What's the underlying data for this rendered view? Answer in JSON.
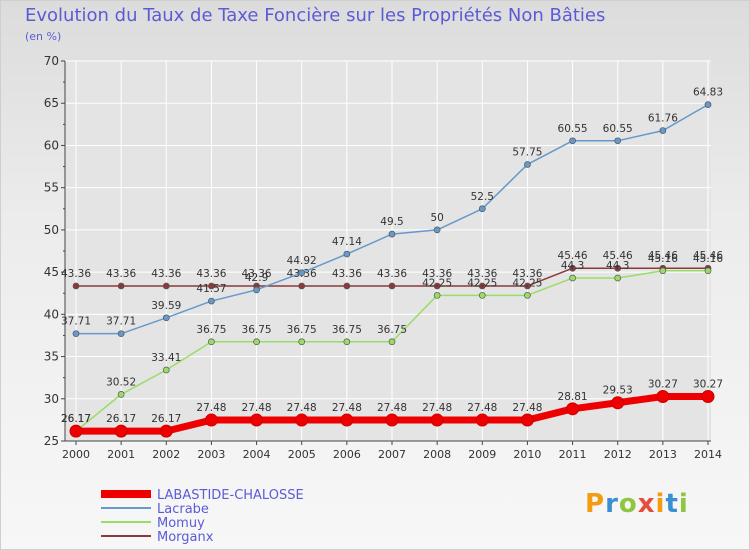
{
  "header": {
    "title": "Evolution du Taux de Taxe Foncière sur les Propriétés Non Bâties",
    "subtitle": "(en %)"
  },
  "logo": {
    "text": "Proxiti",
    "colors": [
      "#f39c12",
      "#3a8fd4",
      "#8dc63f",
      "#e74c3c",
      "#f39c12",
      "#3a8fd4",
      "#8dc63f"
    ]
  },
  "colors": {
    "title": "#5b5bd6",
    "axis": "#444444",
    "grid": "#ffffff"
  },
  "chart_data": {
    "type": "line",
    "x": [
      "2000",
      "2001",
      "2002",
      "2003",
      "2004",
      "2005",
      "2006",
      "2007",
      "2008",
      "2009",
      "2010",
      "2011",
      "2012",
      "2013",
      "2014"
    ],
    "ylim": [
      25,
      70
    ],
    "yticks": [
      25,
      30,
      35,
      40,
      45,
      50,
      55,
      60,
      65,
      70
    ],
    "grid": true,
    "legend_position": "bottom-left",
    "series": [
      {
        "name": "LABASTIDE-CHALOSSE",
        "color": "#ee0000",
        "values": [
          26.17,
          26.17,
          26.17,
          27.48,
          27.48,
          27.48,
          27.48,
          27.48,
          27.48,
          27.48,
          27.48,
          28.81,
          29.53,
          30.27,
          30.27
        ],
        "labels": [
          "26.17",
          "26.17",
          "26.17",
          "27.48",
          "27.48",
          "27.48",
          "27.48",
          "27.48",
          "27.48",
          "27.48",
          "27.48",
          "28.81",
          "29.53",
          "30.27",
          "30.27"
        ]
      },
      {
        "name": "Lacrabe",
        "color": "#6699cc",
        "values": [
          37.71,
          37.71,
          39.59,
          41.57,
          42.9,
          44.92,
          47.14,
          49.5,
          50,
          52.5,
          57.75,
          60.55,
          60.55,
          61.76,
          64.83
        ],
        "labels": [
          "37.71",
          "37.71",
          "39.59",
          "41.57",
          "42.9",
          "44.92",
          "47.14",
          "49.5",
          "50",
          "52.5",
          "57.75",
          "60.55",
          "60.55",
          "61.76",
          "64.83"
        ]
      },
      {
        "name": "Momuy",
        "color": "#99dd66",
        "values": [
          26.17,
          30.52,
          33.41,
          36.75,
          36.75,
          36.75,
          36.75,
          36.75,
          42.25,
          42.25,
          42.25,
          44.3,
          44.3,
          45.16,
          45.16
        ],
        "labels": [
          "26.17",
          "30.52",
          "33.41",
          "36.75",
          "36.75",
          "36.75",
          "36.75",
          "36.75",
          "42.25",
          "42.25",
          "42.25",
          "44.3",
          "44.3",
          "45.16",
          "45.16"
        ]
      },
      {
        "name": "Morganx",
        "color": "#8a3a3a",
        "values": [
          43.36,
          43.36,
          43.36,
          43.36,
          43.36,
          43.36,
          43.36,
          43.36,
          43.36,
          43.36,
          43.36,
          45.46,
          45.46,
          45.46,
          45.46
        ],
        "labels": [
          "43.36",
          "43.36",
          "43.36",
          "43.36",
          "43.36",
          "43.36",
          "43.36",
          "43.36",
          "43.36",
          "43.36",
          "43.36",
          "45.46",
          "45.46",
          "45.46",
          "45.46"
        ]
      }
    ]
  }
}
